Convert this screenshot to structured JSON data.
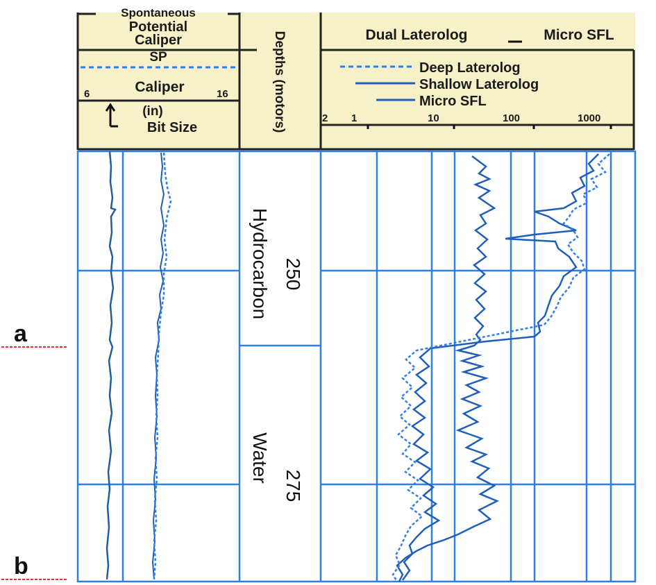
{
  "header": {
    "sp_title_line1": "Spontaneous",
    "sp_title_line2": "Potential",
    "caliper_title": "Caliper",
    "sp_legend": "SP",
    "caliper_legend": "Caliper",
    "caliper_min": "6",
    "caliper_max": "16",
    "caliper_unit": "(in)",
    "bit_size": "Bit Size",
    "depths_label": "Depths (motors)",
    "resistivity_title": "Dual Laterolog",
    "resistivity_title_sep": "_",
    "resistivity_title2": "Micro SFL",
    "legend_deep": "Deep Laterolog",
    "legend_shallow": "Shallow Laterolog",
    "legend_micro": "Micro SFL",
    "scale_ticks": [
      "2",
      "1",
      "10",
      "100",
      "1000"
    ]
  },
  "depth_labels": {
    "d250": "250",
    "d275": "275",
    "zone_hydrocarbon": "Hydrocarbon",
    "zone_water": "Water"
  },
  "markers": {
    "a": "a",
    "b": "b"
  },
  "colors": {
    "header_bg": "#f6f1c8",
    "grid_blue": "#2f7fe6",
    "curve_blue": "#1f5fb8",
    "header_line": "#222222",
    "marker_red": "#e03030"
  }
}
